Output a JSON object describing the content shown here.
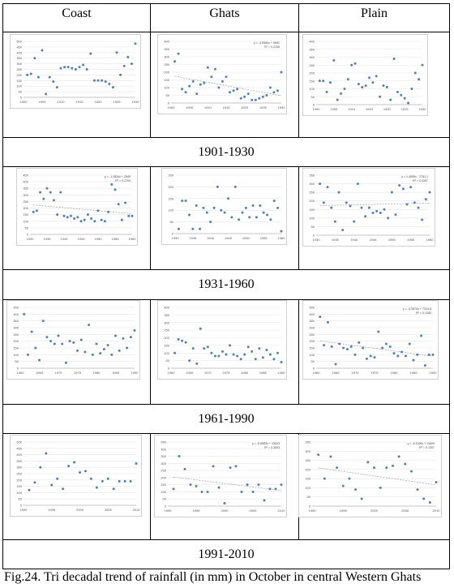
{
  "columns": [
    "Coast",
    "Ghats",
    "Plain"
  ],
  "periods": [
    "1901-1930",
    "1931-1960",
    "1961-1990",
    "1991-2010"
  ],
  "caption": "Fig.24. Tri decadal trend of rainfall (in mm) in October in central Western Ghats",
  "colors": {
    "point": "#4f81bd",
    "trend": "#9e9e9e",
    "grid": "#e6e6e6"
  },
  "chart_data": [
    {
      "id": "coast-1901-1930",
      "type": "scatter",
      "xlim": [
        1900,
        1930
      ],
      "ylim": [
        0,
        500
      ],
      "xticks": [
        1900,
        1905,
        1910,
        1915,
        1920,
        1925,
        1930
      ],
      "yticks": [
        0,
        50,
        100,
        150,
        200,
        250,
        300,
        350,
        400,
        450,
        500
      ],
      "xtick_labels": [
        "1900",
        "1905",
        "1910",
        "1915",
        "1920",
        "1925",
        "1930"
      ],
      "ytick_labels": [
        "0",
        "50",
        "100",
        "150",
        "200",
        "250",
        "300",
        "350",
        "400",
        "450",
        "500"
      ],
      "x": [
        1901,
        1902,
        1903,
        1904,
        1905,
        1906,
        1907,
        1908,
        1909,
        1910,
        1911,
        1912,
        1913,
        1914,
        1915,
        1916,
        1917,
        1918,
        1919,
        1920,
        1921,
        1922,
        1923,
        1924,
        1925,
        1926,
        1927,
        1928,
        1929,
        1930
      ],
      "y": [
        200,
        210,
        350,
        180,
        420,
        30,
        180,
        140,
        90,
        260,
        270,
        270,
        260,
        250,
        270,
        290,
        250,
        390,
        150,
        150,
        150,
        140,
        120,
        90,
        400,
        200,
        280,
        360,
        300,
        480
      ],
      "trend": false,
      "equation": "",
      "r2": ""
    },
    {
      "id": "ghats-1901-1930",
      "type": "scatter",
      "xlim": [
        1900,
        1930
      ],
      "ylim": [
        0,
        400
      ],
      "xticks": [
        1900,
        1905,
        1910,
        1915,
        1920,
        1925,
        1930
      ],
      "yticks": [
        0,
        50,
        100,
        150,
        200,
        250,
        300,
        350,
        400
      ],
      "xtick_labels": [
        "1900",
        "1905",
        "1910",
        "1915",
        "1920",
        "1925",
        "1930"
      ],
      "ytick_labels": [
        "0",
        "50",
        "100",
        "150",
        "200",
        "250",
        "300",
        "350",
        "400"
      ],
      "x": [
        1901,
        1902,
        1903,
        1904,
        1905,
        1906,
        1907,
        1908,
        1909,
        1910,
        1911,
        1912,
        1913,
        1914,
        1915,
        1916,
        1917,
        1918,
        1919,
        1920,
        1921,
        1922,
        1923,
        1924,
        1925,
        1926,
        1927,
        1928,
        1929,
        1930
      ],
      "y": [
        270,
        320,
        90,
        70,
        110,
        140,
        60,
        120,
        130,
        230,
        170,
        220,
        100,
        140,
        170,
        70,
        80,
        90,
        30,
        40,
        60,
        20,
        20,
        30,
        40,
        50,
        100,
        70,
        80,
        200
      ],
      "trend": true,
      "equation": "y = -3.5984x + 6951",
      "r2": "R² = 0.2155"
    },
    {
      "id": "plain-1901-1930",
      "type": "scatter",
      "xlim": [
        1900,
        1930
      ],
      "ylim": [
        0,
        400
      ],
      "xticks": [
        1900,
        1905,
        1910,
        1915,
        1920,
        1925,
        1930
      ],
      "yticks": [
        0,
        50,
        100,
        150,
        200,
        250,
        300,
        350,
        400
      ],
      "xtick_labels": [
        "1900",
        "1905",
        "1910",
        "1915",
        "1920",
        "1925",
        "1930"
      ],
      "ytick_labels": [
        "0",
        "50",
        "100",
        "150",
        "200",
        "250",
        "300",
        "350",
        "400"
      ],
      "x": [
        1901,
        1902,
        1903,
        1904,
        1905,
        1906,
        1907,
        1908,
        1909,
        1910,
        1911,
        1912,
        1913,
        1914,
        1915,
        1916,
        1917,
        1918,
        1919,
        1920,
        1921,
        1922,
        1923,
        1924,
        1925,
        1926,
        1927,
        1928,
        1929,
        1930
      ],
      "y": [
        150,
        150,
        80,
        140,
        280,
        30,
        70,
        100,
        160,
        250,
        260,
        130,
        110,
        120,
        170,
        140,
        180,
        50,
        120,
        110,
        30,
        290,
        80,
        60,
        40,
        10,
        100,
        200,
        160,
        250
      ],
      "trend": false,
      "equation": "",
      "r2": ""
    },
    {
      "id": "coast-1931-1960",
      "type": "scatter",
      "xlim": [
        1930,
        1960
      ],
      "ylim": [
        0,
        450
      ],
      "xticks": [
        1930,
        1935,
        1940,
        1945,
        1950,
        1955,
        1960
      ],
      "yticks": [
        0,
        50,
        100,
        150,
        200,
        250,
        300,
        350,
        400,
        450
      ],
      "xtick_labels": [
        "1930",
        "1935",
        "1940",
        "1945",
        "1950",
        "1955",
        "1960"
      ],
      "ytick_labels": [
        "0",
        "50",
        "100",
        "150",
        "200",
        "250",
        "300",
        "350",
        "400",
        "450"
      ],
      "x": [
        1931,
        1932,
        1933,
        1934,
        1935,
        1936,
        1937,
        1938,
        1939,
        1940,
        1941,
        1942,
        1943,
        1944,
        1945,
        1946,
        1947,
        1948,
        1949,
        1950,
        1951,
        1952,
        1953,
        1954,
        1955,
        1956,
        1957,
        1958,
        1959,
        1960
      ],
      "y": [
        170,
        180,
        320,
        270,
        350,
        320,
        260,
        150,
        320,
        140,
        130,
        140,
        120,
        130,
        100,
        110,
        150,
        120,
        100,
        180,
        110,
        100,
        170,
        380,
        340,
        230,
        110,
        240,
        140,
        140
      ],
      "trend": true,
      "equation": "y = -1.2834x + 2549",
      "r2": "R² = 0.1703"
    },
    {
      "id": "ghats-1931-1960",
      "type": "scatter",
      "xlim": [
        1930,
        1960
      ],
      "ylim": [
        0,
        250
      ],
      "xticks": [
        1930,
        1935,
        1940,
        1945,
        1950,
        1955,
        1960
      ],
      "yticks": [
        0,
        50,
        100,
        150,
        200,
        250
      ],
      "xtick_labels": [
        "1930",
        "1935",
        "1940",
        "1945",
        "1950",
        "1955",
        "1960"
      ],
      "ytick_labels": [
        "0",
        "50",
        "100",
        "150",
        "200",
        "250"
      ],
      "x": [
        1931,
        1932,
        1933,
        1934,
        1935,
        1936,
        1937,
        1938,
        1939,
        1940,
        1941,
        1942,
        1943,
        1944,
        1945,
        1946,
        1947,
        1948,
        1949,
        1950,
        1951,
        1952,
        1953,
        1954,
        1955,
        1956,
        1957,
        1958,
        1959,
        1960
      ],
      "y": [
        20,
        140,
        140,
        80,
        20,
        120,
        20,
        110,
        90,
        50,
        110,
        200,
        100,
        90,
        150,
        70,
        200,
        60,
        90,
        110,
        70,
        120,
        70,
        120,
        90,
        80,
        60,
        140,
        110,
        10
      ],
      "trend": false,
      "equation": "",
      "r2": ""
    },
    {
      "id": "plain-1931-1960",
      "type": "scatter",
      "xlim": [
        1930,
        1960
      ],
      "ylim": [
        0,
        350
      ],
      "xticks": [
        1930,
        1935,
        1940,
        1945,
        1950,
        1955,
        1960
      ],
      "yticks": [
        0,
        50,
        100,
        150,
        200,
        250,
        300,
        350
      ],
      "xtick_labels": [
        "1930",
        "1935",
        "1940",
        "1945",
        "1950",
        "1955",
        "1960"
      ],
      "ytick_labels": [
        "0",
        "50",
        "100",
        "150",
        "200",
        "250",
        "300",
        "350"
      ],
      "x": [
        1931,
        1932,
        1933,
        1934,
        1935,
        1936,
        1937,
        1938,
        1939,
        1940,
        1941,
        1942,
        1943,
        1944,
        1945,
        1946,
        1947,
        1948,
        1949,
        1950,
        1951,
        1952,
        1953,
        1954,
        1955,
        1956,
        1957,
        1958,
        1959,
        1960
      ],
      "y": [
        300,
        190,
        280,
        160,
        80,
        250,
        30,
        190,
        170,
        80,
        300,
        160,
        110,
        160,
        130,
        140,
        130,
        150,
        100,
        250,
        120,
        290,
        270,
        180,
        280,
        190,
        160,
        90,
        210,
        250
      ],
      "trend": true,
      "equation": "y = 1.4059x - 2761.1",
      "r2": "R² = 0.0287"
    },
    {
      "id": "coast-1961-1990",
      "type": "scatter",
      "xlim": [
        1960,
        1990
      ],
      "ylim": [
        0,
        450
      ],
      "xticks": [
        1960,
        1965,
        1970,
        1975,
        1980,
        1985,
        1990
      ],
      "yticks": [
        0,
        50,
        100,
        150,
        200,
        250,
        300,
        350,
        400,
        450
      ],
      "xtick_labels": [
        "1960",
        "1965",
        "1970",
        "1975",
        "1980",
        "1985",
        "1990"
      ],
      "ytick_labels": [
        "0",
        "50",
        "100",
        "150",
        "200",
        "250",
        "300",
        "350",
        "400",
        "450"
      ],
      "x": [
        1961,
        1962,
        1963,
        1964,
        1965,
        1966,
        1967,
        1968,
        1969,
        1970,
        1971,
        1972,
        1973,
        1974,
        1975,
        1976,
        1977,
        1978,
        1979,
        1980,
        1981,
        1982,
        1983,
        1984,
        1985,
        1986,
        1987,
        1988,
        1989,
        1990
      ],
      "y": [
        400,
        100,
        270,
        150,
        60,
        350,
        230,
        200,
        180,
        240,
        180,
        40,
        200,
        190,
        130,
        210,
        120,
        320,
        100,
        180,
        110,
        140,
        170,
        100,
        240,
        130,
        220,
        150,
        230,
        280
      ],
      "trend": false,
      "equation": "",
      "r2": ""
    },
    {
      "id": "ghats-1961-1990",
      "type": "scatter",
      "xlim": [
        1960,
        1990
      ],
      "ylim": [
        0,
        400
      ],
      "xticks": [
        1960,
        1965,
        1970,
        1975,
        1980,
        1985,
        1990
      ],
      "yticks": [
        0,
        50,
        100,
        150,
        200,
        250,
        300,
        350,
        400
      ],
      "xtick_labels": [
        "1960",
        "1965",
        "1970",
        "1975",
        "1980",
        "1985",
        "1990"
      ],
      "ytick_labels": [
        "0",
        "50",
        "100",
        "150",
        "200",
        "250",
        "300",
        "350",
        "400"
      ],
      "x": [
        1961,
        1962,
        1963,
        1964,
        1965,
        1966,
        1967,
        1968,
        1969,
        1970,
        1971,
        1972,
        1973,
        1974,
        1975,
        1976,
        1977,
        1978,
        1979,
        1980,
        1981,
        1982,
        1983,
        1984,
        1985,
        1986,
        1987,
        1988,
        1989,
        1990
      ],
      "y": [
        100,
        190,
        180,
        170,
        50,
        130,
        30,
        260,
        130,
        140,
        100,
        80,
        80,
        110,
        90,
        150,
        90,
        80,
        60,
        90,
        140,
        110,
        60,
        130,
        70,
        120,
        90,
        60,
        100,
        40
      ],
      "trend": false,
      "equation": "",
      "r2": ""
    },
    {
      "id": "plain-1961-1990",
      "type": "scatter",
      "xlim": [
        1960,
        1990
      ],
      "ylim": [
        0,
        450
      ],
      "xticks": [
        1960,
        1965,
        1970,
        1975,
        1980,
        1985,
        1990
      ],
      "yticks": [
        0,
        50,
        100,
        150,
        200,
        250,
        300,
        350,
        400,
        450
      ],
      "xtick_labels": [
        "1960",
        "1965",
        "1970",
        "1975",
        "1980",
        "1985",
        "1990"
      ],
      "ytick_labels": [
        "0",
        "50",
        "100",
        "150",
        "200",
        "250",
        "300",
        "350",
        "400",
        "450"
      ],
      "x": [
        1961,
        1962,
        1963,
        1964,
        1965,
        1966,
        1967,
        1968,
        1969,
        1970,
        1971,
        1972,
        1973,
        1974,
        1975,
        1976,
        1977,
        1978,
        1979,
        1980,
        1981,
        1982,
        1983,
        1984,
        1985,
        1986,
        1987,
        1988,
        1989,
        1990
      ],
      "y": [
        380,
        170,
        340,
        160,
        30,
        180,
        150,
        140,
        160,
        100,
        190,
        150,
        70,
        90,
        80,
        270,
        150,
        180,
        160,
        110,
        90,
        120,
        90,
        180,
        60,
        100,
        240,
        20,
        100,
        100
      ],
      "trend": true,
      "equation": "y = -3.3574x + 7314.8",
      "r2": "R² = 0.1083"
    },
    {
      "id": "coast-1991-2010",
      "type": "scatter",
      "xlim": [
        1990,
        2010
      ],
      "ylim": [
        0,
        500
      ],
      "xticks": [
        1990,
        1995,
        2000,
        2005,
        2010
      ],
      "yticks": [
        0,
        50,
        100,
        150,
        200,
        250,
        300,
        350,
        400,
        450,
        500
      ],
      "xtick_labels": [
        "1990",
        "1995",
        "2000",
        "2005",
        "2010"
      ],
      "ytick_labels": [
        "0",
        "50",
        "100",
        "150",
        "200",
        "250",
        "300",
        "350",
        "400",
        "450",
        "500"
      ],
      "x": [
        1991,
        1992,
        1993,
        1994,
        1995,
        1996,
        1997,
        1998,
        1999,
        2000,
        2001,
        2002,
        2003,
        2004,
        2005,
        2006,
        2007,
        2008,
        2009,
        2010
      ],
      "y": [
        120,
        180,
        300,
        410,
        160,
        210,
        130,
        310,
        340,
        260,
        270,
        210,
        140,
        190,
        210,
        130,
        190,
        190,
        190,
        330
      ],
      "trend": false,
      "equation": "",
      "r2": ""
    },
    {
      "id": "ghats-1991-2010",
      "type": "scatter",
      "xlim": [
        1990,
        2010
      ],
      "ylim": [
        0,
        450
      ],
      "xticks": [
        1990,
        1995,
        2000,
        2005,
        2010
      ],
      "yticks": [
        0,
        50,
        100,
        150,
        200,
        250,
        300,
        350,
        400,
        450
      ],
      "xtick_labels": [
        "1990",
        "1995",
        "2000",
        "2005",
        "2010"
      ],
      "ytick_labels": [
        "0",
        "50",
        "100",
        "150",
        "200",
        "250",
        "300",
        "350",
        "400",
        "450"
      ],
      "x": [
        1991,
        1992,
        1993,
        1994,
        1995,
        1996,
        1997,
        1998,
        1999,
        2000,
        2001,
        2002,
        2003,
        2004,
        2005,
        2006,
        2007,
        2008,
        2009,
        2010
      ],
      "y": [
        120,
        350,
        260,
        150,
        140,
        100,
        100,
        280,
        130,
        20,
        270,
        280,
        100,
        150,
        100,
        150,
        40,
        120,
        120,
        150
      ],
      "trend": true,
      "equation": "y = -6.6983x + 13523",
      "r2": "R² = 0.3003"
    },
    {
      "id": "plain-1991-2010",
      "type": "scatter",
      "xlim": [
        1990,
        2010
      ],
      "ylim": [
        0,
        350
      ],
      "xticks": [
        1990,
        1995,
        2000,
        2005,
        2010
      ],
      "yticks": [
        0,
        50,
        100,
        150,
        200,
        250,
        300,
        350
      ],
      "xtick_labels": [
        "1990",
        "1995",
        "2000",
        "2005",
        "2010"
      ],
      "ytick_labels": [
        "0",
        "50",
        "100",
        "150",
        "200",
        "250",
        "300",
        "350"
      ],
      "x": [
        1991,
        1992,
        1993,
        1994,
        1995,
        1996,
        1997,
        1998,
        1999,
        2000,
        2001,
        2002,
        2003,
        2004,
        2005,
        2006,
        2007,
        2008,
        2009,
        2010
      ],
      "y": [
        280,
        150,
        270,
        210,
        110,
        150,
        90,
        40,
        240,
        210,
        100,
        210,
        220,
        270,
        230,
        190,
        90,
        40,
        20,
        130
      ],
      "trend": true,
      "equation": "y = -5.1106x + 11609",
      "r2": "R² = 0.1307"
    }
  ]
}
